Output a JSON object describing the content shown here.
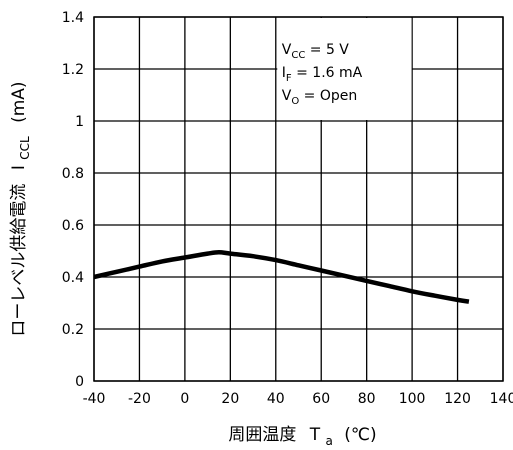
{
  "chart_data": {
    "type": "line",
    "title": "",
    "xlabel": {
      "main": "周囲温度",
      "symbol": "T",
      "subscript": "a",
      "unit": "(℃)"
    },
    "ylabel": {
      "main": "ローレベル供給電流",
      "symbol": "I",
      "subscript": "CCL",
      "unit": "(mA)"
    },
    "xlim": [
      -40,
      140
    ],
    "ylim": [
      0,
      1.4
    ],
    "x_ticks": [
      "-40",
      "-20",
      "0",
      "20",
      "40",
      "60",
      "80",
      "100",
      "120",
      "140"
    ],
    "y_ticks": [
      "0",
      "0.2",
      "0.4",
      "0.6",
      "0.8",
      "1",
      "1.2",
      "1.4"
    ],
    "grid": true,
    "series": [
      {
        "name": "",
        "x": [
          -40,
          -30,
          -20,
          -10,
          0,
          10,
          15,
          20,
          30,
          40,
          50,
          60,
          70,
          80,
          90,
          100,
          110,
          120,
          125
        ],
        "y": [
          0.4,
          0.42,
          0.44,
          0.46,
          0.475,
          0.49,
          0.495,
          0.49,
          0.48,
          0.465,
          0.445,
          0.425,
          0.405,
          0.385,
          0.365,
          0.345,
          0.328,
          0.312,
          0.305
        ]
      }
    ],
    "annotations": [
      {
        "main": "V",
        "subscript": "CC",
        "rest": " = 5 V"
      },
      {
        "main": "I",
        "subscript": "F",
        "rest": " = 1.6 mA"
      },
      {
        "main": "V",
        "subscript": "O",
        "rest": " = Open"
      }
    ],
    "line_color": "#000000",
    "grid_color": "#000000"
  }
}
